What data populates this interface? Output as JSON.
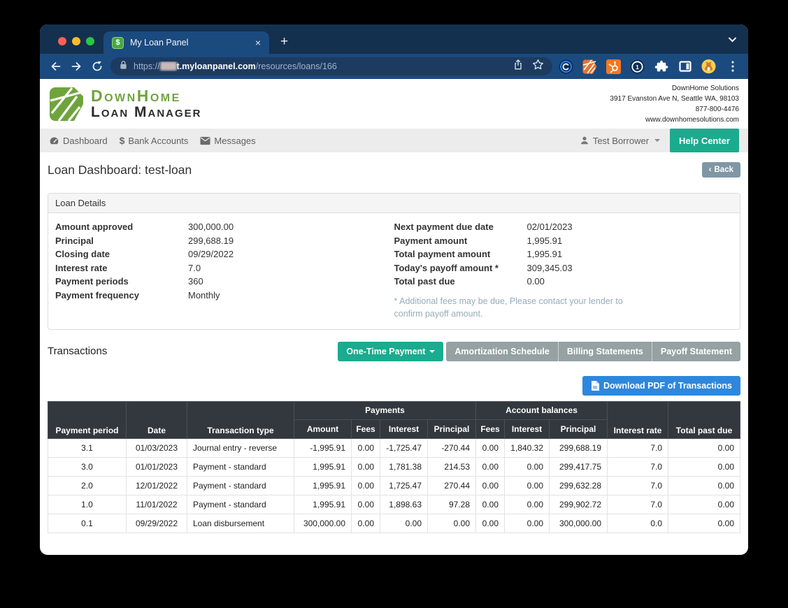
{
  "browser": {
    "tab_title": "My Loan Panel",
    "tab_favicon": "$",
    "close_tab": "×",
    "new_tab": "+",
    "url_scheme": "https://",
    "url_host": "t.myloanpanel.com",
    "url_path": "/resources/loans/166"
  },
  "header": {
    "brand_line1": "DownHome",
    "brand_line2": "Loan Manager",
    "company_name": "DownHome Solutions",
    "company_address": "3917 Evanston Ave N, Seattle WA, 98103",
    "company_phone": "877-800-4476",
    "company_website": "www.downhomesolutions.com"
  },
  "nav": {
    "items": [
      {
        "label": "Dashboard"
      },
      {
        "label": "Bank Accounts"
      },
      {
        "label": "Messages"
      }
    ],
    "user_label": "Test Borrower",
    "help_label": "Help Center"
  },
  "page": {
    "title": "Loan Dashboard: test-loan",
    "back_label": "Back",
    "back_chevron": "‹"
  },
  "loan_details": {
    "title": "Loan Details",
    "left": [
      {
        "label": "Amount approved",
        "value": "300,000.00"
      },
      {
        "label": "Principal",
        "value": "299,688.19"
      },
      {
        "label": "Closing date",
        "value": "09/29/2022"
      },
      {
        "label": "Interest rate",
        "value": "7.0"
      },
      {
        "label": "Payment periods",
        "value": "360"
      },
      {
        "label": "Payment frequency",
        "value": "Monthly"
      }
    ],
    "right": [
      {
        "label": "Next payment due date",
        "value": "02/01/2023"
      },
      {
        "label": "Payment amount",
        "value": "1,995.91"
      },
      {
        "label": "Total payment amount",
        "value": "1,995.91"
      },
      {
        "label": "Today's payoff amount *",
        "value": "309,345.03"
      },
      {
        "label": "Total past due",
        "value": "0.00"
      }
    ],
    "footnote": "* Additional fees may be due, Please contact your lender to confirm payoff amount."
  },
  "transactions": {
    "heading": "Transactions",
    "one_time_payment_label": "One-Time Payment",
    "amortization_label": "Amortization Schedule",
    "billing_label": "Billing Statements",
    "payoff_label": "Payoff Statement",
    "download_label": "Download PDF of Transactions",
    "table": {
      "group_payments": "Payments",
      "group_account_balances": "Account balances",
      "col_payment_period": "Payment period",
      "col_date": "Date",
      "col_transaction_type": "Transaction type",
      "col_amount": "Amount",
      "col_fees": "Fees",
      "col_interest": "Interest",
      "col_principal": "Principal",
      "col_interest_rate": "Interest rate",
      "col_total_past_due": "Total past due",
      "rows": [
        [
          "3.1",
          "01/03/2023",
          "Journal entry - reverse",
          "-1,995.91",
          "0.00",
          "-1,725.47",
          "-270.44",
          "0.00",
          "1,840.32",
          "299,688.19",
          "7.0",
          "0.00"
        ],
        [
          "3.0",
          "01/01/2023",
          "Payment - standard",
          "1,995.91",
          "0.00",
          "1,781.38",
          "214.53",
          "0.00",
          "0.00",
          "299,417.75",
          "7.0",
          "0.00"
        ],
        [
          "2.0",
          "12/01/2022",
          "Payment - standard",
          "1,995.91",
          "0.00",
          "1,725.47",
          "270.44",
          "0.00",
          "0.00",
          "299,632.28",
          "7.0",
          "0.00"
        ],
        [
          "1.0",
          "11/01/2022",
          "Payment - standard",
          "1,995.91",
          "0.00",
          "1,898.63",
          "97.28",
          "0.00",
          "0.00",
          "299,902.72",
          "7.0",
          "0.00"
        ],
        [
          "0.1",
          "09/29/2022",
          "Loan disbursement",
          "300,000.00",
          "0.00",
          "0.00",
          "0.00",
          "0.00",
          "0.00",
          "300,000.00",
          "0.0",
          "0.00"
        ]
      ]
    }
  },
  "colors": {
    "accent_teal": "#1BAB8E",
    "accent_blue": "#2E87DC",
    "brand_green": "#6FA43D",
    "table_header_dark": "#33383E",
    "button_gray": "#95A1A2",
    "back_button_slate": "#7F97A5",
    "browser_frame": "#14304F",
    "browser_toolbar": "#1B4A7E"
  }
}
